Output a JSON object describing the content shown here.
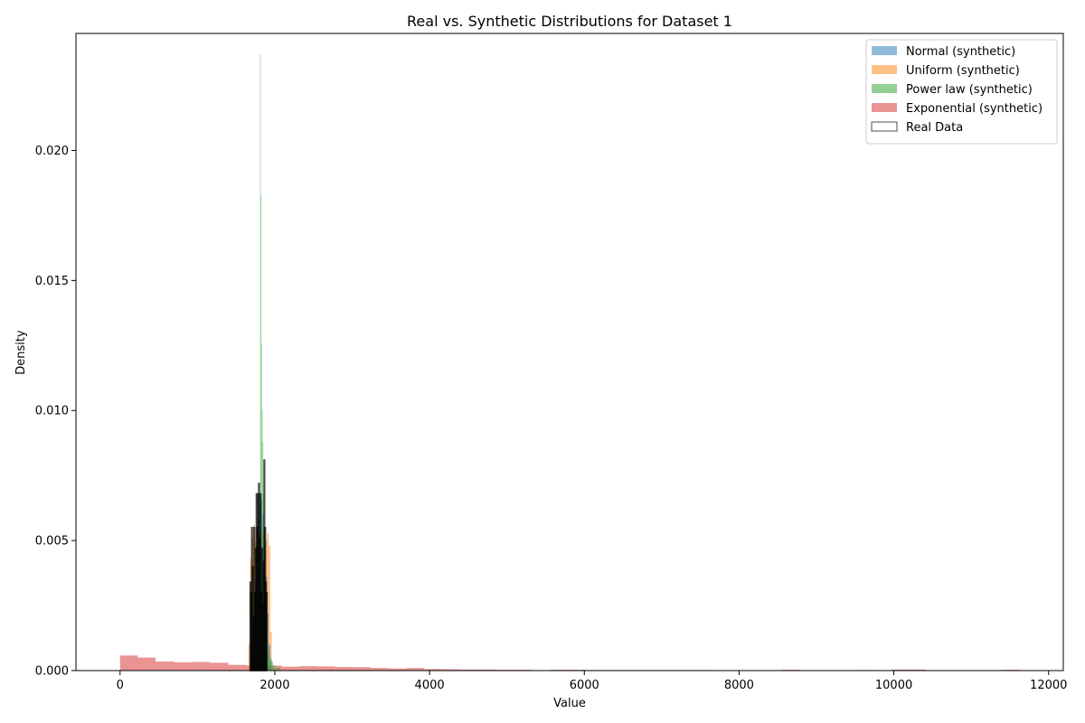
{
  "chart_data": {
    "type": "bar",
    "title": "Real vs. Synthetic Distributions for Dataset 1",
    "xlabel": "Value",
    "ylabel": "Density",
    "xlim": [
      -570,
      12190
    ],
    "ylim": [
      0,
      0.0245
    ],
    "xticks": [
      0,
      2000,
      4000,
      6000,
      8000,
      10000,
      12000
    ],
    "xtick_labels": [
      "0",
      "2000",
      "4000",
      "6000",
      "8000",
      "10000",
      "12000"
    ],
    "yticks": [
      0,
      0.005,
      0.01,
      0.015,
      0.02
    ],
    "ytick_labels": [
      "0.000",
      "0.005",
      "0.010",
      "0.015",
      "0.020"
    ],
    "grid": false,
    "legend_position": "top-right",
    "series": [
      {
        "name": "Exponential (synthetic)",
        "color": "#d62728",
        "alpha": 0.5,
        "bins": [
          [
            0,
            230,
            0.00058
          ],
          [
            230,
            460,
            0.0005
          ],
          [
            460,
            700,
            0.00035
          ],
          [
            700,
            930,
            0.00032
          ],
          [
            930,
            1160,
            0.00033
          ],
          [
            1160,
            1400,
            0.0003
          ],
          [
            1400,
            1630,
            0.00022
          ],
          [
            1630,
            1860,
            0.0002
          ],
          [
            1860,
            2090,
            0.00019
          ],
          [
            2090,
            2320,
            0.00015
          ],
          [
            2320,
            2550,
            0.00017
          ],
          [
            2550,
            2780,
            0.00016
          ],
          [
            2780,
            3010,
            0.00014
          ],
          [
            3010,
            3240,
            0.00013
          ],
          [
            3240,
            3470,
            0.0001
          ],
          [
            3470,
            3700,
            8e-05
          ],
          [
            3700,
            3930,
            0.0001
          ],
          [
            3930,
            4160,
            6e-05
          ],
          [
            4160,
            4400,
            5e-05
          ],
          [
            4400,
            4630,
            4e-05
          ],
          [
            4630,
            4860,
            4e-05
          ],
          [
            4860,
            5090,
            3e-05
          ],
          [
            5090,
            5320,
            3e-05
          ],
          [
            5560,
            5790,
            3e-05
          ],
          [
            5790,
            6020,
            3e-05
          ],
          [
            6020,
            6250,
            2e-05
          ],
          [
            6250,
            6480,
            2e-05
          ],
          [
            6480,
            6710,
            2e-05
          ],
          [
            6710,
            6940,
            2e-05
          ],
          [
            6940,
            7170,
            2e-05
          ],
          [
            7170,
            7400,
            2e-05
          ],
          [
            7400,
            7630,
            2e-05
          ],
          [
            8550,
            8780,
            3e-05
          ],
          [
            9530,
            9760,
            2e-05
          ],
          [
            9960,
            10190,
            4e-05
          ],
          [
            10190,
            10420,
            4e-05
          ],
          [
            11390,
            11620,
            3e-05
          ]
        ]
      },
      {
        "name": "Uniform (synthetic)",
        "color": "#ff7f0e",
        "alpha": 0.5,
        "bins": [
          [
            1660,
            1680,
            0.001
          ],
          [
            1680,
            1700,
            0.0043
          ],
          [
            1700,
            1720,
            0.0051
          ],
          [
            1720,
            1740,
            0.0056
          ],
          [
            1740,
            1760,
            0.005
          ],
          [
            1760,
            1780,
            0.0055
          ],
          [
            1780,
            1800,
            0.0049
          ],
          [
            1800,
            1820,
            0.0053
          ],
          [
            1820,
            1840,
            0.0054
          ],
          [
            1840,
            1860,
            0.0052
          ],
          [
            1860,
            1880,
            0.0055
          ],
          [
            1880,
            1900,
            0.005
          ],
          [
            1900,
            1920,
            0.0053
          ],
          [
            1920,
            1940,
            0.0048
          ],
          [
            1940,
            1960,
            0.0015
          ]
        ]
      },
      {
        "name": "Normal (synthetic)",
        "color": "#1f77b4",
        "alpha": 0.5,
        "bins": [
          [
            1700,
            1720,
            0.0008
          ],
          [
            1720,
            1740,
            0.002
          ],
          [
            1740,
            1760,
            0.0035
          ],
          [
            1760,
            1780,
            0.0048
          ],
          [
            1780,
            1800,
            0.0058
          ],
          [
            1800,
            1820,
            0.0064
          ],
          [
            1820,
            1840,
            0.0066
          ],
          [
            1840,
            1860,
            0.006
          ],
          [
            1860,
            1880,
            0.0049
          ],
          [
            1880,
            1900,
            0.0036
          ],
          [
            1900,
            1920,
            0.0022
          ],
          [
            1920,
            1940,
            0.001
          ],
          [
            1940,
            1960,
            0.0004
          ]
        ]
      },
      {
        "name": "Power law (synthetic)",
        "color": "#2ca02c",
        "alpha": 0.5,
        "bins": [
          [
            1810,
            1818,
            0.0237
          ],
          [
            1818,
            1826,
            0.0183
          ],
          [
            1826,
            1834,
            0.0126
          ],
          [
            1834,
            1842,
            0.01
          ],
          [
            1842,
            1850,
            0.0088
          ],
          [
            1850,
            1858,
            0.0068
          ],
          [
            1858,
            1866,
            0.0052
          ],
          [
            1866,
            1874,
            0.0042
          ],
          [
            1874,
            1882,
            0.003
          ],
          [
            1882,
            1890,
            0.0022
          ],
          [
            1890,
            1898,
            0.0016
          ],
          [
            1898,
            1906,
            0.0012
          ],
          [
            1906,
            1914,
            0.0009
          ],
          [
            1914,
            1922,
            0.0007
          ],
          [
            1922,
            1930,
            0.0009
          ],
          [
            1930,
            1938,
            0.0006
          ],
          [
            1938,
            1946,
            0.0004
          ],
          [
            1946,
            1954,
            0.0005
          ],
          [
            1954,
            1962,
            0.0003
          ],
          [
            1962,
            1970,
            0.0004
          ],
          [
            1970,
            1978,
            0.0003
          ],
          [
            1978,
            1986,
            0.0002
          ],
          [
            1986,
            1994,
            0.0002
          ],
          [
            1994,
            2002,
            0.0002
          ],
          [
            2002,
            2010,
            0.0001
          ],
          [
            2010,
            2018,
            0.0002
          ],
          [
            2018,
            2026,
            0.0001
          ],
          [
            2026,
            2034,
            0.0001
          ],
          [
            2034,
            2042,
            0.0001
          ],
          [
            2042,
            2050,
            0.0001
          ],
          [
            2050,
            2058,
            0.0001
          ],
          [
            2058,
            2066,
            0.0002
          ],
          [
            2066,
            2074,
            0.0001
          ]
        ]
      },
      {
        "name": "Real Data",
        "color": "#000000",
        "alpha": 0.7,
        "outline": true,
        "bins": [
          [
            1680,
            1690,
            0.0034
          ],
          [
            1690,
            1700,
            0.003
          ],
          [
            1700,
            1710,
            0.0055
          ],
          [
            1710,
            1720,
            0.004
          ],
          [
            1720,
            1730,
            0.0021
          ],
          [
            1730,
            1740,
            0.0055
          ],
          [
            1740,
            1750,
            0.003
          ],
          [
            1750,
            1760,
            0.0047
          ],
          [
            1760,
            1770,
            0.0068
          ],
          [
            1770,
            1780,
            0.0055
          ],
          [
            1780,
            1790,
            0.0068
          ],
          [
            1790,
            1800,
            0.0072
          ],
          [
            1800,
            1810,
            0.0051
          ],
          [
            1810,
            1820,
            0.0068
          ],
          [
            1820,
            1830,
            0.003
          ],
          [
            1830,
            1840,
            0.0047
          ],
          [
            1840,
            1850,
            0.0026
          ],
          [
            1850,
            1860,
            0.0042
          ],
          [
            1860,
            1870,
            0.0081
          ],
          [
            1870,
            1880,
            0.0055
          ],
          [
            1880,
            1890,
            0.0034
          ],
          [
            1890,
            1900,
            0.003
          ]
        ]
      }
    ],
    "legend_order": [
      "Normal (synthetic)",
      "Uniform (synthetic)",
      "Power law (synthetic)",
      "Exponential (synthetic)",
      "Real Data"
    ]
  }
}
